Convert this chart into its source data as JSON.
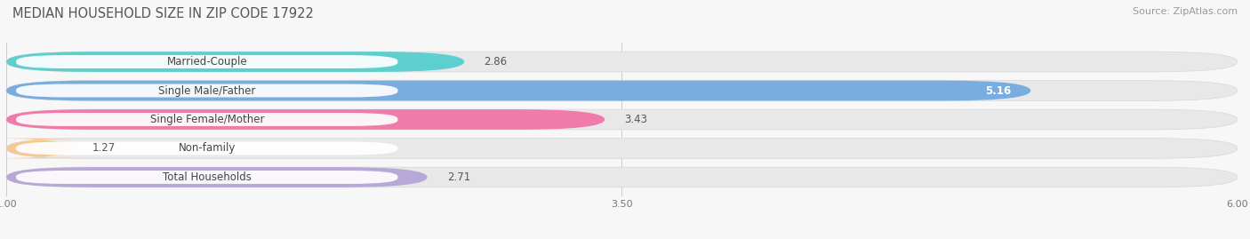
{
  "title": "MEDIAN HOUSEHOLD SIZE IN ZIP CODE 17922",
  "source": "Source: ZipAtlas.com",
  "categories": [
    "Married-Couple",
    "Single Male/Father",
    "Single Female/Mother",
    "Non-family",
    "Total Households"
  ],
  "values": [
    2.86,
    5.16,
    3.43,
    1.27,
    2.71
  ],
  "bar_colors": [
    "#5ecfcf",
    "#7aaddf",
    "#f07aaa",
    "#f5c896",
    "#b8a8d8"
  ],
  "xlim_min": 1.0,
  "xlim_max": 6.0,
  "xticks": [
    1.0,
    3.5,
    6.0
  ],
  "xticklabels": [
    "1.00",
    "3.50",
    "6.00"
  ],
  "title_fontsize": 10.5,
  "source_fontsize": 8,
  "label_fontsize": 8.5,
  "value_fontsize": 8.5,
  "background_color": "#f7f7f7",
  "bar_bg_color": "#e8e8e8",
  "label_bg_color": "#ffffff"
}
